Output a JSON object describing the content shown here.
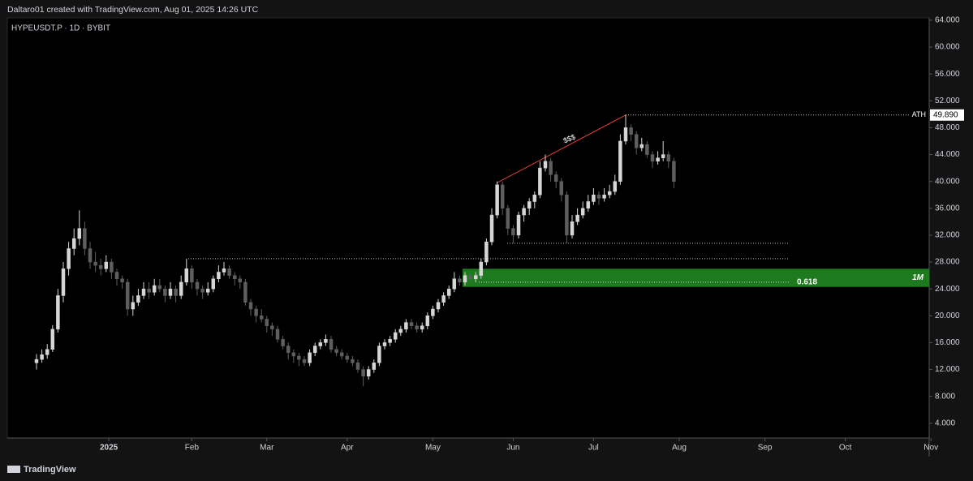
{
  "header": {
    "credit": "Daltaro01 created with TradingView.com, Aug 01, 2025 14:26 UTC",
    "symbol": "HYPEUSDT.P · 1D · BYBIT"
  },
  "footer": {
    "brand": "TradingView"
  },
  "chart_data": {
    "type": "candlestick",
    "up_color": "#d6d6d6",
    "down_color": "#5e5e5e",
    "xlim": [
      -1,
      167
    ],
    "xticks": [
      {
        "value": 13.5,
        "label": "2025"
      },
      {
        "value": 29,
        "label": "Feb"
      },
      {
        "value": 43,
        "label": "Mar"
      },
      {
        "value": 58,
        "label": "Apr"
      },
      {
        "value": 74,
        "label": "May"
      },
      {
        "value": 89,
        "label": "Jun"
      },
      {
        "value": 104,
        "label": "Jul"
      },
      {
        "value": 120,
        "label": "Aug"
      },
      {
        "value": 136,
        "label": "Sep"
      },
      {
        "value": 151,
        "label": "Oct"
      },
      {
        "value": 167,
        "label": "Nov"
      }
    ],
    "ylim": [
      1.8,
      65.2
    ],
    "yticks": [
      {
        "value": 4,
        "label": "4.000"
      },
      {
        "value": 8,
        "label": "8.000"
      },
      {
        "value": 12,
        "label": "12.000"
      },
      {
        "value": 16,
        "label": "16.000"
      },
      {
        "value": 20,
        "label": "20.000"
      },
      {
        "value": 24,
        "label": "24.000"
      },
      {
        "value": 28,
        "label": "28.000"
      },
      {
        "value": 32,
        "label": "32.000"
      },
      {
        "value": 36,
        "label": "36.000"
      },
      {
        "value": 40,
        "label": "40.000"
      },
      {
        "value": 44,
        "label": "44.000"
      },
      {
        "value": 48,
        "label": "48.000"
      },
      {
        "value": 52,
        "label": "52.000"
      },
      {
        "value": 56,
        "label": "56.000"
      },
      {
        "value": 60,
        "label": "60.000"
      },
      {
        "value": 64,
        "label": "64.000"
      }
    ],
    "candles": [
      [
        13,
        14.3,
        12,
        13.5
      ],
      [
        13.5,
        15,
        13,
        14.2
      ],
      [
        14.2,
        15.8,
        13.6,
        15
      ],
      [
        15,
        18.6,
        14.6,
        18
      ],
      [
        18,
        24,
        17.5,
        23
      ],
      [
        23,
        28,
        22,
        27
      ],
      [
        27,
        31,
        26,
        30
      ],
      [
        30,
        33,
        29,
        31.5
      ],
      [
        31.5,
        35.7,
        30.5,
        33
      ],
      [
        33,
        34,
        29,
        30
      ],
      [
        30,
        31,
        27,
        28
      ],
      [
        28,
        29.5,
        26.5,
        27.5
      ],
      [
        27.5,
        28.5,
        26,
        27
      ],
      [
        27,
        29,
        26.5,
        28
      ],
      [
        28,
        28.5,
        25.5,
        26.5
      ],
      [
        26.5,
        27,
        24.5,
        25.5
      ],
      [
        25.5,
        26,
        24,
        25
      ],
      [
        25,
        25.5,
        20,
        21
      ],
      [
        21,
        23,
        20,
        22
      ],
      [
        22,
        24,
        21.5,
        23
      ],
      [
        23,
        25,
        22.5,
        24
      ],
      [
        24,
        25,
        22.5,
        23.5
      ],
      [
        23.5,
        25.5,
        23,
        24.5
      ],
      [
        24.5,
        25.5,
        23.5,
        24
      ],
      [
        24,
        24.5,
        22,
        23
      ],
      [
        23,
        25,
        22.5,
        24
      ],
      [
        24,
        24.5,
        22,
        23
      ],
      [
        23,
        26,
        22.5,
        25
      ],
      [
        25,
        28.5,
        24.5,
        27
      ],
      [
        27,
        27.5,
        24,
        25
      ],
      [
        25,
        25.5,
        23,
        24
      ],
      [
        24,
        24.5,
        22.5,
        23.5
      ],
      [
        23.5,
        25,
        23,
        24
      ],
      [
        24,
        26,
        23.5,
        25.5
      ],
      [
        25.5,
        27.5,
        25,
        26.5
      ],
      [
        26.5,
        28,
        26,
        27
      ],
      [
        27,
        27.5,
        25.5,
        26
      ],
      [
        26,
        26.5,
        24.5,
        25.5
      ],
      [
        25.5,
        26,
        24,
        25
      ],
      [
        25,
        25.5,
        21.5,
        22
      ],
      [
        22,
        22.5,
        20,
        21
      ],
      [
        21,
        21.5,
        19,
        20
      ],
      [
        20,
        21,
        19,
        19.5
      ],
      [
        19.5,
        20,
        17.5,
        18.5
      ],
      [
        18.5,
        19,
        17,
        18
      ],
      [
        18,
        18.5,
        16,
        16.5
      ],
      [
        16.5,
        17,
        15,
        15.5
      ],
      [
        15.5,
        16,
        13.5,
        14.5
      ],
      [
        14.5,
        15,
        13,
        14
      ],
      [
        14,
        14.5,
        12.5,
        13.5
      ],
      [
        13.5,
        14,
        12.5,
        13
      ],
      [
        13,
        15,
        12.5,
        14.5
      ],
      [
        14.5,
        16,
        14,
        15.5
      ],
      [
        15.5,
        16.5,
        15,
        16
      ],
      [
        16,
        17.2,
        15.5,
        16.5
      ],
      [
        16.5,
        17,
        14.5,
        15
      ],
      [
        15,
        15.5,
        14,
        14.5
      ],
      [
        14.5,
        15,
        13.5,
        14
      ],
      [
        14,
        14.5,
        13,
        13.5
      ],
      [
        13.5,
        14,
        12.5,
        13
      ],
      [
        13,
        13.5,
        11.5,
        12
      ],
      [
        12,
        12.5,
        9.5,
        11
      ],
      [
        11,
        12.5,
        10.5,
        12
      ],
      [
        12,
        13.5,
        11.5,
        13
      ],
      [
        13,
        16,
        12.5,
        15.5
      ],
      [
        15.5,
        16.5,
        15,
        16
      ],
      [
        16,
        17,
        15.5,
        16.5
      ],
      [
        16.5,
        18,
        16,
        17.5
      ],
      [
        17.5,
        18.5,
        17,
        18
      ],
      [
        18,
        19.5,
        17.5,
        19
      ],
      [
        19,
        19.5,
        18,
        18.5
      ],
      [
        18.5,
        19,
        17.5,
        18
      ],
      [
        18,
        19,
        17.5,
        18.5
      ],
      [
        18.5,
        20.5,
        18,
        20
      ],
      [
        20,
        21.5,
        19.5,
        21
      ],
      [
        21,
        22.5,
        20.5,
        22
      ],
      [
        22,
        23.5,
        21.5,
        23
      ],
      [
        23,
        24.5,
        22.5,
        24
      ],
      [
        24,
        26.5,
        23.5,
        25.5
      ],
      [
        25.5,
        26,
        24.5,
        25
      ],
      [
        25,
        26.5,
        24.5,
        26
      ],
      [
        26,
        26.5,
        25,
        25.5
      ],
      [
        25.5,
        26.5,
        25,
        26
      ],
      [
        26,
        28.5,
        25.5,
        28
      ],
      [
        28,
        31.5,
        27.5,
        31
      ],
      [
        31,
        36,
        30.5,
        35
      ],
      [
        35,
        40,
        34.5,
        39.5
      ],
      [
        39.5,
        40,
        35,
        36
      ],
      [
        36,
        36.5,
        32,
        33
      ],
      [
        33,
        33.5,
        30.8,
        32
      ],
      [
        32,
        35.5,
        31.5,
        35
      ],
      [
        35,
        36.5,
        34,
        36
      ],
      [
        36,
        37.5,
        35,
        37
      ],
      [
        37,
        38.5,
        36,
        38
      ],
      [
        38,
        43,
        37.5,
        42
      ],
      [
        42,
        44,
        41.5,
        43
      ],
      [
        43,
        43.5,
        40,
        41
      ],
      [
        41,
        41.5,
        39,
        40
      ],
      [
        40,
        40.5,
        37,
        38
      ],
      [
        38,
        38.5,
        30.8,
        32
      ],
      [
        32,
        35,
        31.5,
        34
      ],
      [
        34,
        36,
        33.5,
        35
      ],
      [
        35,
        37,
        34.5,
        36
      ],
      [
        36,
        38,
        35.5,
        37
      ],
      [
        37,
        39,
        36.5,
        38
      ],
      [
        38,
        38.5,
        36.5,
        37.5
      ],
      [
        37.5,
        39,
        37,
        38
      ],
      [
        38,
        39.5,
        37.5,
        38.5
      ],
      [
        38.5,
        41,
        38,
        40
      ],
      [
        40,
        47,
        39.5,
        46
      ],
      [
        46,
        49.89,
        45.5,
        48
      ],
      [
        48,
        48.5,
        46,
        47
      ],
      [
        47,
        47.5,
        44,
        45
      ],
      [
        45,
        46.5,
        44.5,
        45.5
      ],
      [
        45.5,
        46,
        43.5,
        44
      ],
      [
        44,
        44.5,
        42,
        43
      ],
      [
        43,
        44.5,
        42.5,
        43.5
      ],
      [
        43.5,
        46,
        43,
        44
      ],
      [
        44,
        44.5,
        42,
        43
      ],
      [
        43,
        43.5,
        39,
        40
      ]
    ],
    "levels": [
      28.5,
      30.8
    ],
    "ath": {
      "value": 49.89,
      "label": "49.890",
      "name": "ATH"
    },
    "trendline": {
      "x": [
        86,
        110
      ],
      "y": [
        39.8,
        49.89
      ],
      "color": "#e03c3c",
      "label": "$$$"
    },
    "zone": {
      "from": 24.3,
      "to": 27,
      "color": "#1e7a1e",
      "label": "1M"
    },
    "fib": {
      "value": 25,
      "ratio": 0.618
    }
  }
}
